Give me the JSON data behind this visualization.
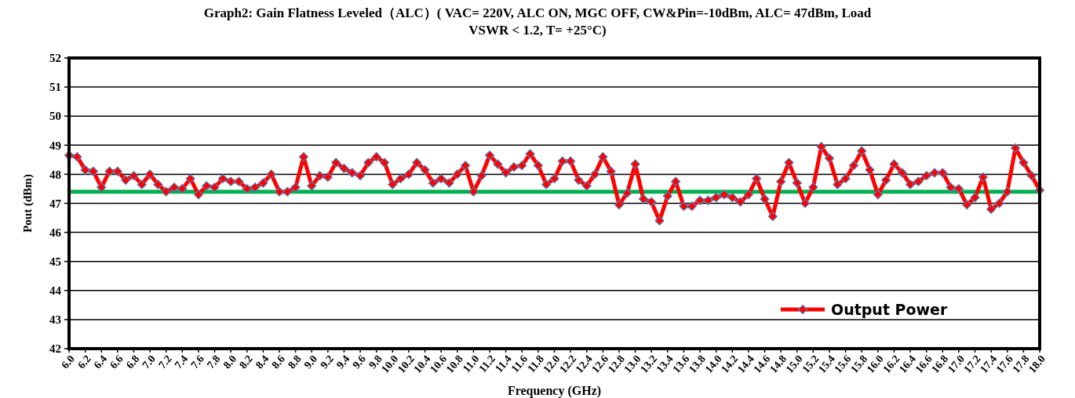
{
  "chart_data": {
    "type": "line",
    "title": "Graph2: Gain Flatness Leveled（ALC）( VAC= 220V, ALC ON, MGC OFF, CW&Pin=-10dBm, ALC= 47dBm, Load VSWR < 1.2, T= +25°C)",
    "xlabel": "Frequency (GHz)",
    "ylabel": "Pout (dBm)",
    "x": [
      6.0,
      6.1,
      6.2,
      6.3,
      6.4,
      6.5,
      6.6,
      6.7,
      6.8,
      6.9,
      7.0,
      7.1,
      7.2,
      7.3,
      7.4,
      7.5,
      7.6,
      7.7,
      7.8,
      7.9,
      8.0,
      8.1,
      8.2,
      8.3,
      8.4,
      8.5,
      8.6,
      8.7,
      8.8,
      8.9,
      9.0,
      9.1,
      9.2,
      9.3,
      9.4,
      9.5,
      9.6,
      9.7,
      9.8,
      9.9,
      10.0,
      10.1,
      10.2,
      10.3,
      10.4,
      10.5,
      10.6,
      10.7,
      10.8,
      10.9,
      11.0,
      11.1,
      11.2,
      11.3,
      11.4,
      11.5,
      11.6,
      11.7,
      11.8,
      11.9,
      12.0,
      12.1,
      12.2,
      12.3,
      12.4,
      12.5,
      12.6,
      12.7,
      12.8,
      12.9,
      13.0,
      13.1,
      13.2,
      13.3,
      13.4,
      13.5,
      13.6,
      13.7,
      13.8,
      13.9,
      14.0,
      14.1,
      14.2,
      14.3,
      14.4,
      14.5,
      14.6,
      14.7,
      14.8,
      14.9,
      15.0,
      15.1,
      15.2,
      15.3,
      15.4,
      15.5,
      15.6,
      15.7,
      15.8,
      15.9,
      16.0,
      16.1,
      16.2,
      16.3,
      16.4,
      16.5,
      16.6,
      16.7,
      16.8,
      16.9,
      17.0,
      17.1,
      17.2,
      17.3,
      17.4,
      17.5,
      17.6,
      17.7,
      17.8,
      17.9,
      18.0
    ],
    "series": [
      {
        "name": "Output Power",
        "color": "#ff0000",
        "values": [
          48.65,
          48.6,
          48.15,
          48.1,
          47.55,
          48.1,
          48.1,
          47.8,
          47.95,
          47.65,
          48.0,
          47.65,
          47.4,
          47.55,
          47.5,
          47.85,
          47.3,
          47.6,
          47.55,
          47.85,
          47.75,
          47.75,
          47.5,
          47.55,
          47.7,
          48.0,
          47.4,
          47.4,
          47.55,
          48.6,
          47.6,
          47.95,
          47.9,
          48.4,
          48.2,
          48.05,
          47.95,
          48.4,
          48.6,
          48.4,
          47.65,
          47.85,
          48.0,
          48.4,
          48.15,
          47.7,
          47.85,
          47.7,
          48.0,
          48.3,
          47.4,
          47.95,
          48.65,
          48.35,
          48.05,
          48.25,
          48.3,
          48.7,
          48.3,
          47.65,
          47.85,
          48.45,
          48.45,
          47.8,
          47.6,
          48.0,
          48.6,
          48.1,
          46.95,
          47.35,
          48.35,
          47.15,
          47.05,
          46.4,
          47.25,
          47.75,
          46.9,
          46.9,
          47.1,
          47.1,
          47.2,
          47.3,
          47.2,
          47.05,
          47.3,
          47.85,
          47.15,
          46.55,
          47.75,
          48.4,
          47.7,
          47.0,
          47.55,
          48.95,
          48.55,
          47.65,
          47.85,
          48.3,
          48.8,
          48.15,
          47.3,
          47.8,
          48.35,
          48.05,
          47.65,
          47.75,
          47.95,
          48.05,
          48.05,
          47.55,
          47.5,
          46.95,
          47.2,
          47.9,
          46.8,
          47.0,
          47.4,
          48.9,
          48.4,
          47.95,
          47.45
        ]
      }
    ],
    "xlim": [
      6.0,
      18.0
    ],
    "xticks": [
      {
        "value": 6.0,
        "label": "6.0"
      },
      {
        "value": 6.2,
        "label": "6.2"
      },
      {
        "value": 6.4,
        "label": "6.4"
      },
      {
        "value": 6.6,
        "label": "6.6"
      },
      {
        "value": 6.8,
        "label": "6.8"
      },
      {
        "value": 7.0,
        "label": "7.0"
      },
      {
        "value": 7.2,
        "label": "7.2"
      },
      {
        "value": 7.4,
        "label": "7.4"
      },
      {
        "value": 7.6,
        "label": "7.6"
      },
      {
        "value": 7.8,
        "label": "7.8"
      },
      {
        "value": 8.0,
        "label": "8.0"
      },
      {
        "value": 8.2,
        "label": "8.2"
      },
      {
        "value": 8.4,
        "label": "8.4"
      },
      {
        "value": 8.6,
        "label": "8.6"
      },
      {
        "value": 8.8,
        "label": "8.8"
      },
      {
        "value": 9.0,
        "label": "9.0"
      },
      {
        "value": 9.2,
        "label": "9.2"
      },
      {
        "value": 9.4,
        "label": "9.4"
      },
      {
        "value": 9.6,
        "label": "9.6"
      },
      {
        "value": 9.8,
        "label": "9.8"
      },
      {
        "value": 10.0,
        "label": "10.0"
      },
      {
        "value": 10.2,
        "label": "10.2"
      },
      {
        "value": 10.4,
        "label": "10.4"
      },
      {
        "value": 10.6,
        "label": "10.6"
      },
      {
        "value": 10.8,
        "label": "10.8"
      },
      {
        "value": 11.0,
        "label": "11.0"
      },
      {
        "value": 11.2,
        "label": "11.2"
      },
      {
        "value": 11.4,
        "label": "11.4"
      },
      {
        "value": 11.6,
        "label": "11.6"
      },
      {
        "value": 11.8,
        "label": "11.8"
      },
      {
        "value": 12.0,
        "label": "12.0"
      },
      {
        "value": 12.2,
        "label": "12.2"
      },
      {
        "value": 12.4,
        "label": "12.4"
      },
      {
        "value": 12.6,
        "label": "12.6"
      },
      {
        "value": 12.8,
        "label": "12.8"
      },
      {
        "value": 13.0,
        "label": "13.0"
      },
      {
        "value": 13.2,
        "label": "13.2"
      },
      {
        "value": 13.4,
        "label": "13.4"
      },
      {
        "value": 13.6,
        "label": "13.6"
      },
      {
        "value": 13.8,
        "label": "13.8"
      },
      {
        "value": 14.0,
        "label": "14.0"
      },
      {
        "value": 14.2,
        "label": "14.2"
      },
      {
        "value": 14.4,
        "label": "14.4"
      },
      {
        "value": 14.6,
        "label": "14.6"
      },
      {
        "value": 14.8,
        "label": "14.8"
      },
      {
        "value": 15.0,
        "label": "15.0"
      },
      {
        "value": 15.2,
        "label": "15.2"
      },
      {
        "value": 15.4,
        "label": "15.4"
      },
      {
        "value": 15.6,
        "label": "15.6"
      },
      {
        "value": 15.8,
        "label": "15.8"
      },
      {
        "value": 16.0,
        "label": "16.0"
      },
      {
        "value": 16.2,
        "label": "16.2"
      },
      {
        "value": 16.4,
        "label": "16.4"
      },
      {
        "value": 16.6,
        "label": "16.6"
      },
      {
        "value": 16.8,
        "label": "16.8"
      },
      {
        "value": 17.0,
        "label": "17.0"
      },
      {
        "value": 17.2,
        "label": "17.2"
      },
      {
        "value": 17.4,
        "label": "17.4"
      },
      {
        "value": 17.6,
        "label": "17.6"
      },
      {
        "value": 17.8,
        "label": "17.8"
      },
      {
        "value": 18.0,
        "label": "18.0"
      }
    ],
    "ylim": [
      42,
      52
    ],
    "yticks": [
      42,
      43,
      44,
      45,
      46,
      47,
      48,
      49,
      50,
      51,
      52
    ],
    "ref_lines": [
      {
        "axis": "y",
        "value": 47.4,
        "color": "#00b050"
      }
    ],
    "grid": "y",
    "legend": "bottom right",
    "marker": "diamond",
    "line_style": "solid"
  }
}
